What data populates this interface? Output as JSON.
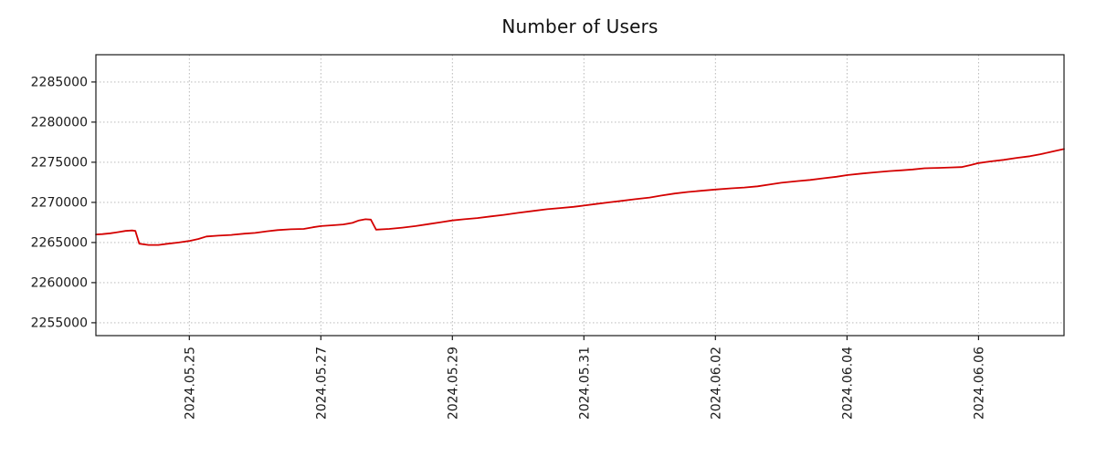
{
  "page": {
    "background": "#ffffff"
  },
  "chart_data": {
    "type": "line",
    "title": "Number of Users",
    "xlabel": "",
    "ylabel": "",
    "legend": "none",
    "grid": {
      "show": true,
      "style": "dotted",
      "color": "#b0b0b0"
    },
    "axis_color": "#1a1a1a",
    "text_color": "#1a1a1a",
    "xlim": [
      0,
      14.72
    ],
    "ylim": [
      2253400,
      2288400
    ],
    "x_ticks": [
      {
        "pos": 1.42,
        "label": "2024.05.25"
      },
      {
        "pos": 3.42,
        "label": "2024.05.27"
      },
      {
        "pos": 5.42,
        "label": "2024.05.29"
      },
      {
        "pos": 7.42,
        "label": "2024.05.31"
      },
      {
        "pos": 9.42,
        "label": "2024.06.02"
      },
      {
        "pos": 11.42,
        "label": "2024.06.04"
      },
      {
        "pos": 13.42,
        "label": "2024.06.06"
      }
    ],
    "y_ticks": [
      {
        "pos": 2255000,
        "label": "2255000"
      },
      {
        "pos": 2260000,
        "label": "2260000"
      },
      {
        "pos": 2265000,
        "label": "2265000"
      },
      {
        "pos": 2270000,
        "label": "2270000"
      },
      {
        "pos": 2275000,
        "label": "2275000"
      },
      {
        "pos": 2280000,
        "label": "2280000"
      },
      {
        "pos": 2285000,
        "label": "2285000"
      }
    ],
    "series": [
      {
        "name": "Number of Users",
        "color": "#d40000",
        "points": [
          [
            0.0,
            2266000
          ],
          [
            0.1,
            2266050
          ],
          [
            0.22,
            2266150
          ],
          [
            0.34,
            2266300
          ],
          [
            0.45,
            2266450
          ],
          [
            0.55,
            2266500
          ],
          [
            0.6,
            2266450
          ],
          [
            0.66,
            2264850
          ],
          [
            0.8,
            2264700
          ],
          [
            0.95,
            2264700
          ],
          [
            1.1,
            2264850
          ],
          [
            1.26,
            2265000
          ],
          [
            1.42,
            2265200
          ],
          [
            1.56,
            2265450
          ],
          [
            1.68,
            2265750
          ],
          [
            1.86,
            2265850
          ],
          [
            2.06,
            2265950
          ],
          [
            2.26,
            2266100
          ],
          [
            2.42,
            2266200
          ],
          [
            2.6,
            2266400
          ],
          [
            2.76,
            2266550
          ],
          [
            2.96,
            2266650
          ],
          [
            3.16,
            2266700
          ],
          [
            3.3,
            2266900
          ],
          [
            3.42,
            2267050
          ],
          [
            3.6,
            2267150
          ],
          [
            3.76,
            2267250
          ],
          [
            3.9,
            2267450
          ],
          [
            4.0,
            2267750
          ],
          [
            4.1,
            2267900
          ],
          [
            4.18,
            2267850
          ],
          [
            4.26,
            2266600
          ],
          [
            4.46,
            2266700
          ],
          [
            4.66,
            2266850
          ],
          [
            4.86,
            2267050
          ],
          [
            5.06,
            2267300
          ],
          [
            5.26,
            2267550
          ],
          [
            5.42,
            2267750
          ],
          [
            5.6,
            2267900
          ],
          [
            5.8,
            2268050
          ],
          [
            6.0,
            2268250
          ],
          [
            6.2,
            2268450
          ],
          [
            6.42,
            2268700
          ],
          [
            6.66,
            2268950
          ],
          [
            6.86,
            2269150
          ],
          [
            7.06,
            2269300
          ],
          [
            7.26,
            2269450
          ],
          [
            7.42,
            2269600
          ],
          [
            7.6,
            2269800
          ],
          [
            7.8,
            2270000
          ],
          [
            8.0,
            2270200
          ],
          [
            8.2,
            2270400
          ],
          [
            8.42,
            2270600
          ],
          [
            8.6,
            2270850
          ],
          [
            8.8,
            2271100
          ],
          [
            9.0,
            2271300
          ],
          [
            9.2,
            2271450
          ],
          [
            9.42,
            2271600
          ],
          [
            9.66,
            2271750
          ],
          [
            9.86,
            2271850
          ],
          [
            10.06,
            2272000
          ],
          [
            10.26,
            2272250
          ],
          [
            10.42,
            2272450
          ],
          [
            10.66,
            2272650
          ],
          [
            10.86,
            2272800
          ],
          [
            11.06,
            2273000
          ],
          [
            11.26,
            2273200
          ],
          [
            11.42,
            2273400
          ],
          [
            11.66,
            2273600
          ],
          [
            11.86,
            2273750
          ],
          [
            12.06,
            2273900
          ],
          [
            12.26,
            2274000
          ],
          [
            12.42,
            2274100
          ],
          [
            12.6,
            2274250
          ],
          [
            12.8,
            2274300
          ],
          [
            13.0,
            2274350
          ],
          [
            13.16,
            2274400
          ],
          [
            13.3,
            2274650
          ],
          [
            13.42,
            2274900
          ],
          [
            13.6,
            2275100
          ],
          [
            13.8,
            2275300
          ],
          [
            14.0,
            2275550
          ],
          [
            14.2,
            2275750
          ],
          [
            14.36,
            2276000
          ],
          [
            14.5,
            2276250
          ],
          [
            14.6,
            2276450
          ],
          [
            14.72,
            2276650
          ]
        ]
      }
    ]
  }
}
